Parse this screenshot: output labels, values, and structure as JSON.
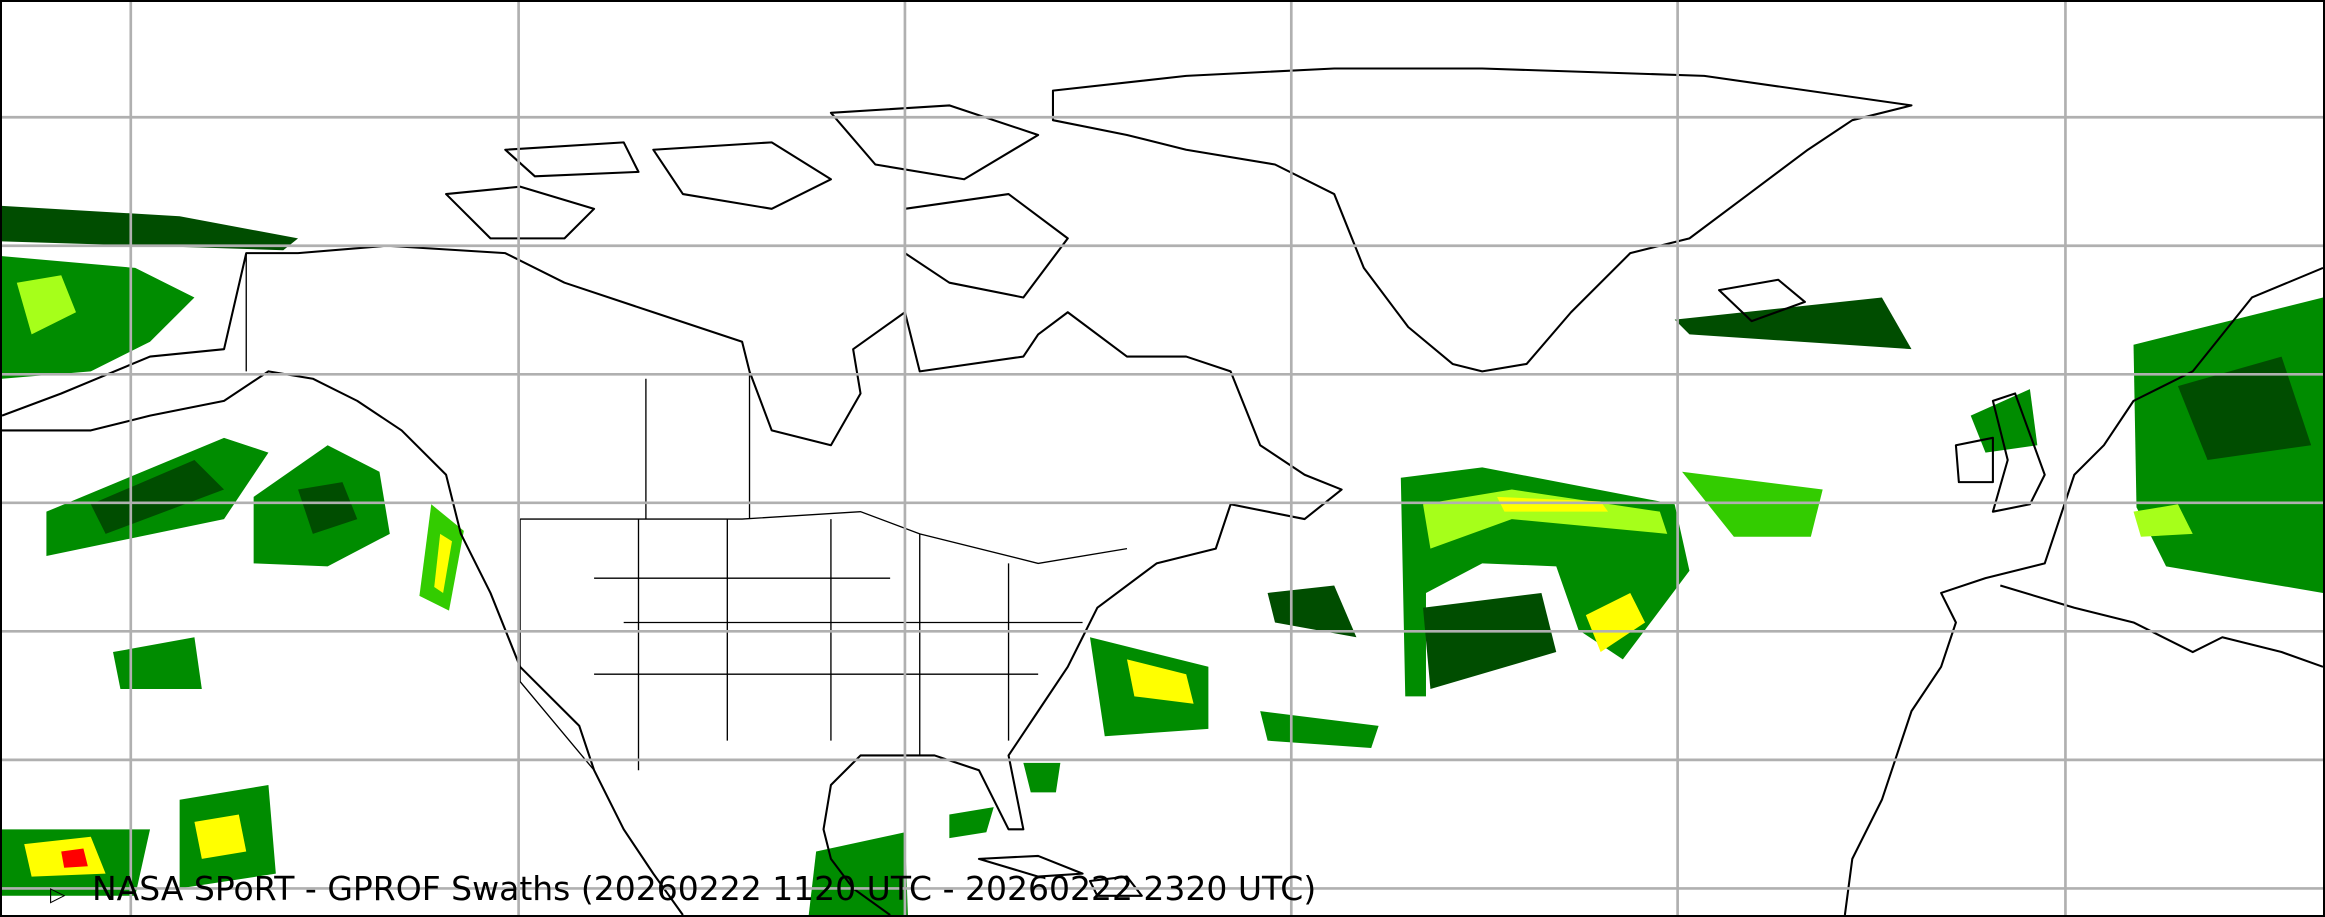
{
  "title": "NASA SPoRT - GPROF Swaths (20260222 1120 UTC - 20260222 2320 UTC)",
  "legend_toggle_icon": "triangle-right-icon",
  "map": {
    "projection": "equirectangular",
    "graticule": {
      "lon_step_deg": 30,
      "lat_step_deg": 10,
      "color": "#b0b0b0"
    },
    "precip_colors": [
      "#004d00",
      "#008c00",
      "#33cc00",
      "#a6ff1a",
      "#ffff00",
      "#ffa500",
      "#ff0000"
    ]
  }
}
